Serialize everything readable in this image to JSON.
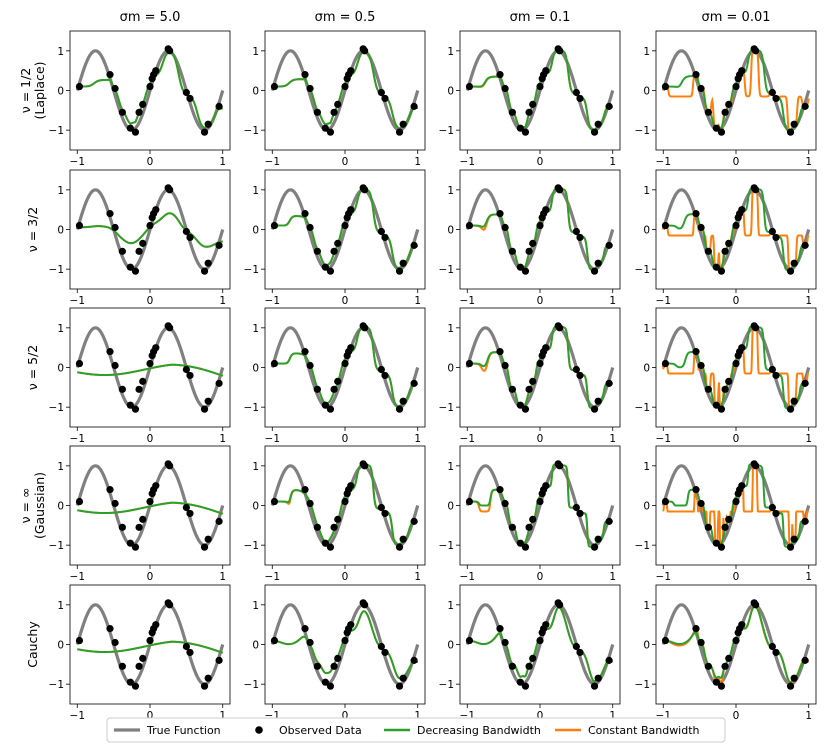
{
  "chart_data": {
    "type": "line",
    "layout": "grid-5x4",
    "columns": [
      {
        "title": "σm = 5.0",
        "sigma_m": 5.0
      },
      {
        "title": "σm = 0.5",
        "sigma_m": 0.5
      },
      {
        "title": "σm = 0.1",
        "sigma_m": 0.1
      },
      {
        "title": "σm = 0.01",
        "sigma_m": 0.01
      }
    ],
    "rows": [
      {
        "label_lines": [
          "ν = 1/2",
          "(Laplace)"
        ],
        "kernel": "laplace"
      },
      {
        "label_lines": [
          "ν = 3/2"
        ],
        "kernel": "matern32"
      },
      {
        "label_lines": [
          "ν = 5/2"
        ],
        "kernel": "matern52"
      },
      {
        "label_lines": [
          "ν = ∞",
          "(Gaussian)"
        ],
        "kernel": "gaussian"
      },
      {
        "label_lines": [
          "Cauchy"
        ],
        "kernel": "cauchy"
      }
    ],
    "xlim": [
      -1.1,
      1.1
    ],
    "ylim": [
      -1.5,
      1.5
    ],
    "xticks": [
      -1,
      0,
      1
    ],
    "xtick_labels": [
      "−1",
      "0",
      "1"
    ],
    "yticks": [
      1,
      0,
      -1
    ],
    "ytick_labels": [
      "1",
      "0",
      "−1"
    ],
    "true_function": "sin(2πx)",
    "observed_data": {
      "x": [
        -0.97,
        -0.55,
        -0.48,
        -0.38,
        -0.27,
        -0.2,
        -0.15,
        -0.1,
        0.0,
        0.03,
        0.05,
        0.08,
        0.25,
        0.27,
        0.5,
        0.55,
        0.75,
        0.8,
        0.95
      ],
      "y": [
        0.1,
        0.4,
        0.05,
        -0.55,
        -0.95,
        -1.05,
        -0.55,
        -0.35,
        0.1,
        0.3,
        0.4,
        0.5,
        1.05,
        1.0,
        -0.05,
        -0.2,
        -1.05,
        -0.85,
        -0.4
      ]
    },
    "series": [
      {
        "name": "True Function",
        "color": "#808080"
      },
      {
        "name": "Observed Data",
        "color": "#000000"
      },
      {
        "name": "Decreasing Bandwidth",
        "color": "#2ca02c"
      },
      {
        "name": "Constant Bandwidth",
        "color": "#ff7f0e"
      }
    ],
    "legend_position": "bottom-center"
  }
}
